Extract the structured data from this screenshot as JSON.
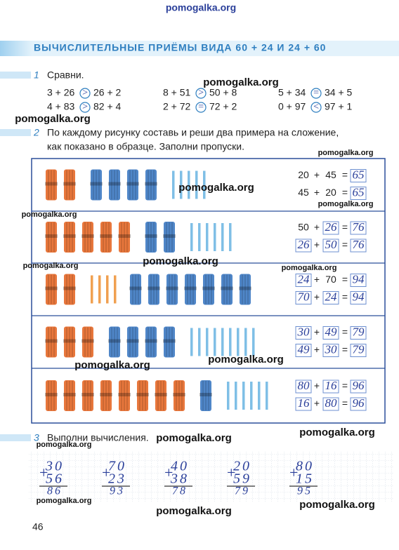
{
  "watermark_top": "pomogalka.org",
  "header": {
    "title": "ВЫЧИСЛИТЕЛЬНЫЕ ПРИЁМЫ ВИДА 60 + 24 И 24 + 60"
  },
  "task1": {
    "number": "1",
    "instruction": "Сравни.",
    "items": [
      {
        "left": "3 + 26",
        "sign": ">",
        "right": "26 + 2"
      },
      {
        "left": "8 + 51",
        "sign": ">",
        "right": "50 + 8"
      },
      {
        "left": "5 + 34",
        "sign": "=",
        "right": "34 + 5"
      },
      {
        "left": "4 + 83",
        "sign": ">",
        "right": "82 + 4"
      },
      {
        "left": "2 + 72",
        "sign": "=",
        "right": "72 + 2"
      },
      {
        "left": "0 + 97",
        "sign": "<",
        "right": "97 + 1"
      }
    ]
  },
  "task2": {
    "number": "2",
    "instruction_line1": "По каждому рисунку составь и реши два примера на сложение,",
    "instruction_line2": "как показано в образце. Заполни пропуски.",
    "plus": "+",
    "equals": "=",
    "rows": [
      {
        "groups": [
          {
            "kind": "bundle",
            "color": "#e8773c",
            "count": 2
          },
          {
            "kind": "bundle",
            "color": "#4f86c8",
            "count": 4
          },
          {
            "kind": "stick",
            "color": "#7fbfe6",
            "count": 5
          }
        ],
        "equations": [
          [
            {
              "text": "20",
              "filled": false
            },
            {
              "text": "45",
              "filled": false
            },
            {
              "text": "65",
              "filled": true
            }
          ],
          [
            {
              "text": "45",
              "filled": false
            },
            {
              "text": "20",
              "filled": false
            },
            {
              "text": "65",
              "filled": true
            }
          ]
        ]
      },
      {
        "groups": [
          {
            "kind": "bundle",
            "color": "#e8773c",
            "count": 5
          },
          {
            "kind": "bundle",
            "color": "#4f86c8",
            "count": 2
          },
          {
            "kind": "stick",
            "color": "#7fbfe6",
            "count": 6
          }
        ],
        "equations": [
          [
            {
              "text": "50",
              "filled": false
            },
            {
              "text": "26",
              "filled": true
            },
            {
              "text": "76",
              "filled": true
            }
          ],
          [
            {
              "text": "26",
              "filled": true
            },
            {
              "text": "50",
              "filled": true
            },
            {
              "text": "76",
              "filled": true
            }
          ]
        ]
      },
      {
        "groups": [
          {
            "kind": "bundle",
            "color": "#e8773c",
            "count": 2
          },
          {
            "kind": "stick",
            "color": "#f0a050",
            "count": 4
          },
          {
            "kind": "bundle",
            "color": "#4f86c8",
            "count": 7
          }
        ],
        "equations": [
          [
            {
              "text": "24",
              "filled": true
            },
            {
              "text": "70",
              "filled": false
            },
            {
              "text": "94",
              "filled": true
            }
          ],
          [
            {
              "text": "70",
              "filled": true
            },
            {
              "text": "24",
              "filled": true
            },
            {
              "text": "94",
              "filled": true
            }
          ]
        ]
      },
      {
        "groups": [
          {
            "kind": "bundle",
            "color": "#e8773c",
            "count": 3
          },
          {
            "kind": "bundle",
            "color": "#4f86c8",
            "count": 4
          },
          {
            "kind": "stick",
            "color": "#7fbfe6",
            "count": 9
          }
        ],
        "equations": [
          [
            {
              "text": "30",
              "filled": true
            },
            {
              "text": "49",
              "filled": true
            },
            {
              "text": "79",
              "filled": true
            }
          ],
          [
            {
              "text": "49",
              "filled": true
            },
            {
              "text": "30",
              "filled": true
            },
            {
              "text": "79",
              "filled": true
            }
          ]
        ]
      },
      {
        "groups": [
          {
            "kind": "bundle",
            "color": "#e8773c",
            "count": 8
          },
          {
            "kind": "bundle",
            "color": "#4f86c8",
            "count": 1
          },
          {
            "kind": "stick",
            "color": "#7fbfe6",
            "count": 6
          }
        ],
        "equations": [
          [
            {
              "text": "80",
              "filled": true
            },
            {
              "text": "16",
              "filled": true
            },
            {
              "text": "96",
              "filled": true
            }
          ],
          [
            {
              "text": "16",
              "filled": true
            },
            {
              "text": "80",
              "filled": true
            },
            {
              "text": "96",
              "filled": true
            }
          ]
        ]
      }
    ]
  },
  "task3": {
    "number": "3",
    "instruction": "Выполни вычисления.",
    "plus": "+",
    "columns": [
      {
        "a": "30",
        "b": "56",
        "sum": "86"
      },
      {
        "a": "70",
        "b": "23",
        "sum": "93"
      },
      {
        "a": "40",
        "b": "38",
        "sum": "78"
      },
      {
        "a": "20",
        "b": "59",
        "sum": "79"
      },
      {
        "a": "80",
        "b": "15",
        "sum": "95"
      }
    ]
  },
  "page_number": "46",
  "watermarks": [
    "pomogalka.org",
    "pomogalka.org",
    "pomogalka.org",
    "pomogalka.org",
    "pomogalka.org",
    "pomogalka.org",
    "pomogalka.org",
    "pomogalka.org",
    "pomogalka.org",
    "pomogalka.org",
    "pomogalka.org",
    "pomogalka.org",
    "pomogalka.org",
    "pomogalka.org",
    "pomogalka.org",
    "pomogalka.org",
    "pomogalka.org"
  ]
}
